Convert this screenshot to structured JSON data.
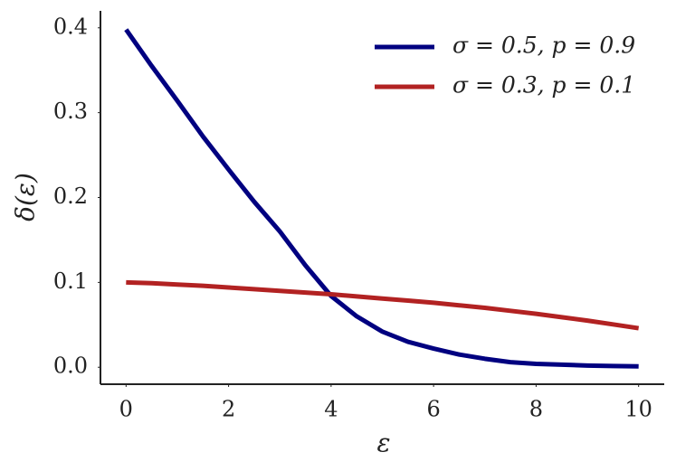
{
  "chart_data": {
    "type": "line",
    "xlabel": "ε",
    "ylabel": "δ(ε)",
    "x": [
      0,
      0.5,
      1,
      1.5,
      2,
      2.5,
      3,
      3.5,
      4,
      4.5,
      5,
      5.5,
      6,
      6.5,
      7,
      7.5,
      8,
      8.5,
      9,
      9.5,
      10
    ],
    "series": [
      {
        "name": "σ = 0.5, p = 0.9",
        "color": "#000080",
        "values": [
          0.398,
          0.355,
          0.314,
          0.272,
          0.233,
          0.195,
          0.16,
          0.12,
          0.084,
          0.06,
          0.042,
          0.03,
          0.022,
          0.015,
          0.01,
          0.006,
          0.004,
          0.003,
          0.002,
          0.0015,
          0.001
        ]
      },
      {
        "name": "σ = 0.3, p = 0.1",
        "color": "#b22222",
        "values": [
          0.1,
          0.099,
          0.0975,
          0.096,
          0.094,
          0.092,
          0.09,
          0.088,
          0.086,
          0.0835,
          0.081,
          0.0785,
          0.076,
          0.073,
          0.07,
          0.0665,
          0.063,
          0.059,
          0.055,
          0.0505,
          0.046
        ]
      }
    ],
    "xlim": [
      -0.5,
      10.5
    ],
    "ylim": [
      -0.02,
      0.42
    ],
    "xticks": [
      0,
      2,
      4,
      6,
      8,
      10
    ],
    "yticks": [
      {
        "value": 0,
        "label": "0.0"
      },
      0.1,
      0.2,
      0.3,
      0.4
    ],
    "grid": false,
    "legend": "upper right"
  }
}
